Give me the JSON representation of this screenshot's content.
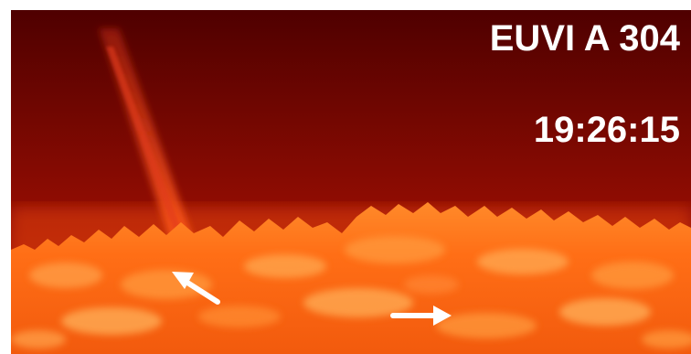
{
  "image": {
    "instrument_label": "EUVI A 304",
    "timestamp": "19:26:15",
    "colors": {
      "sky_top": "#5a0000",
      "sky_bottom": "#b21a05",
      "limb": "#ff7a1e",
      "surface": "#ff6a14",
      "highlight": "#ffb15a",
      "arrow": "#ffffff"
    },
    "icons": [
      "arrow-up-left-icon",
      "arrow-right-icon"
    ]
  }
}
